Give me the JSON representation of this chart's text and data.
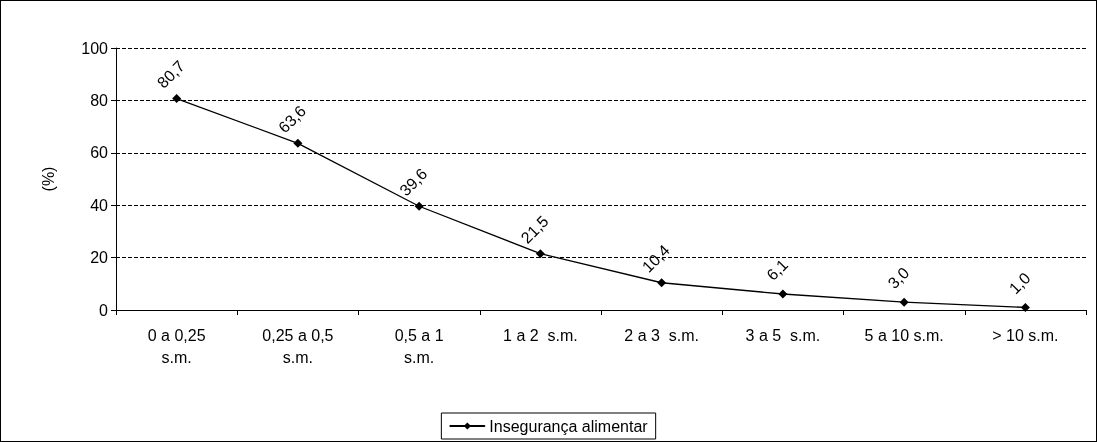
{
  "chart_data": {
    "type": "line",
    "ylabel": "(%)",
    "categories": [
      "0 a 0,25\ns.m.",
      "0,25 a 0,5\ns.m.",
      "0,5 a 1\ns.m.",
      "1 a 2  s.m.",
      "2 a 3  s.m.",
      "3 a 5  s.m.",
      "5 a 10 s.m.",
      "> 10 s.m."
    ],
    "series": [
      {
        "name": "Insegurança alimentar",
        "color": "#000000",
        "values": [
          80.7,
          63.6,
          39.6,
          21.5,
          10.4,
          6.1,
          3.0,
          1.0
        ],
        "value_labels": [
          "80,7",
          "63,6",
          "39,6",
          "21,5",
          "10,4",
          "6,1",
          "3,0",
          "1,0"
        ]
      }
    ],
    "ylim": [
      0,
      100
    ],
    "yticks": [
      0,
      20,
      40,
      60,
      80,
      100
    ],
    "grid": "y",
    "legend": "bottom",
    "marker": "diamond",
    "line_style": "solid"
  }
}
